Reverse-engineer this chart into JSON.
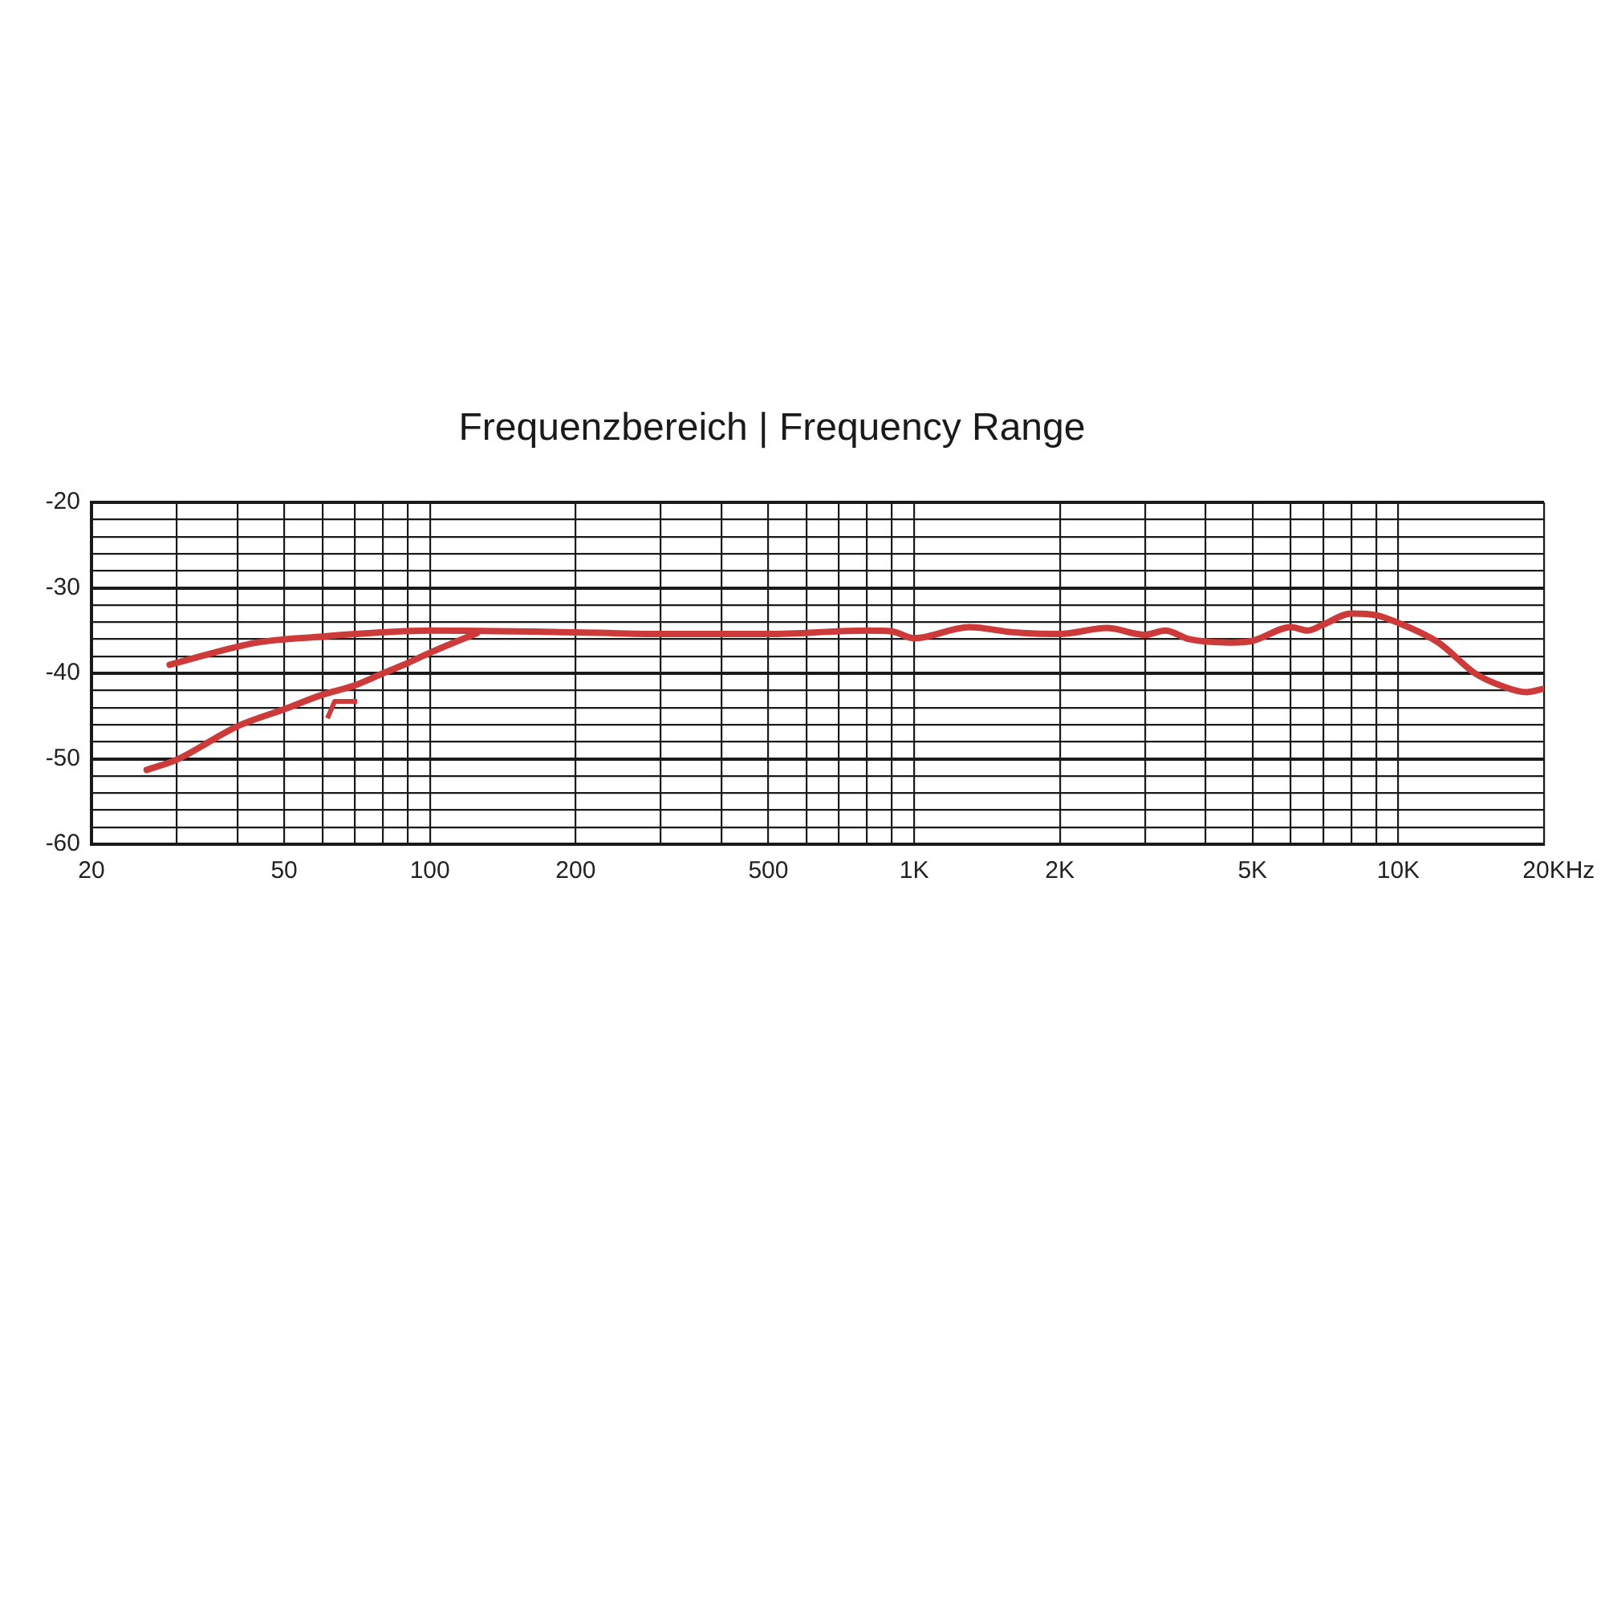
{
  "chart_data": {
    "type": "line",
    "title": "Frequenzbereich | Frequency Range",
    "xlabel": "Hz",
    "log": "x",
    "grid": true,
    "xlim": [
      20,
      20000
    ],
    "ylim": [
      -60,
      -20
    ],
    "xticks": [
      20,
      {
        "value": 30,
        "label": null
      },
      {
        "value": 40,
        "label": null
      },
      50,
      {
        "value": 60,
        "label": null
      },
      {
        "value": 70,
        "label": null
      },
      {
        "value": 80,
        "label": null
      },
      {
        "value": 90,
        "label": null
      },
      100,
      200,
      {
        "value": 300,
        "label": null
      },
      {
        "value": 400,
        "label": null
      },
      500,
      {
        "value": 600,
        "label": null
      },
      {
        "value": 700,
        "label": null
      },
      {
        "value": 800,
        "label": null
      },
      {
        "value": 900,
        "label": null
      },
      {
        "value": 1000,
        "label": "1K"
      },
      {
        "value": 2000,
        "label": "2K"
      },
      {
        "value": 3000,
        "label": null
      },
      {
        "value": 4000,
        "label": null
      },
      {
        "value": 5000,
        "label": "5K"
      },
      {
        "value": 6000,
        "label": null
      },
      {
        "value": 7000,
        "label": null
      },
      {
        "value": 8000,
        "label": null
      },
      {
        "value": 9000,
        "label": null
      },
      {
        "value": 10000,
        "label": "10K"
      },
      {
        "value": 20000,
        "label": "20K"
      }
    ],
    "yticks": [
      -60,
      {
        "value": -58,
        "label": null
      },
      {
        "value": -56,
        "label": null
      },
      {
        "value": -54,
        "label": null
      },
      {
        "value": -52,
        "label": null
      },
      -50,
      {
        "value": -48,
        "label": null
      },
      {
        "value": -46,
        "label": null
      },
      {
        "value": -44,
        "label": null
      },
      {
        "value": -42,
        "label": null
      },
      -40,
      {
        "value": -38,
        "label": null
      },
      {
        "value": -36,
        "label": null
      },
      {
        "value": -34,
        "label": null
      },
      {
        "value": -32,
        "label": null
      },
      -30,
      {
        "value": -28,
        "label": null
      },
      {
        "value": -26,
        "label": null
      },
      {
        "value": -24,
        "label": null
      },
      {
        "value": -22,
        "label": null
      },
      -20
    ],
    "series": [
      {
        "color": "#cc3a3a",
        "x": [
          29,
          44,
          60,
          70,
          100,
          200,
          300,
          500,
          800,
          900,
          1000,
          1300,
          1600,
          2000,
          2500,
          3000,
          3300,
          3700,
          4500,
          5000,
          6000,
          6500,
          7000,
          8000,
          9000,
          10000,
          12100,
          14400,
          16400,
          18400,
          20000
        ],
        "values": [
          -39.0,
          -36.4,
          -35.7,
          -35.4,
          -35.0,
          -35.2,
          -35.4,
          -35.4,
          -35.0,
          -35.1,
          -35.9,
          -34.6,
          -35.2,
          -35.4,
          -34.7,
          -35.5,
          -35.0,
          -36.0,
          -36.4,
          -36.2,
          -34.6,
          -35.0,
          -34.3,
          -33.0,
          -33.2,
          -34.1,
          -36.4,
          -40.0,
          -41.5,
          -42.2,
          -41.8
        ]
      },
      {
        "color": "#cc3a3a",
        "x": [
          26,
          30,
          40,
          50,
          60,
          70,
          80,
          90,
          100,
          125
        ],
        "values": [
          -51.3,
          -50.1,
          -46.2,
          -44.2,
          -42.5,
          -41.4,
          -40.0,
          -38.8,
          -37.6,
          -35.3
        ]
      }
    ]
  }
}
